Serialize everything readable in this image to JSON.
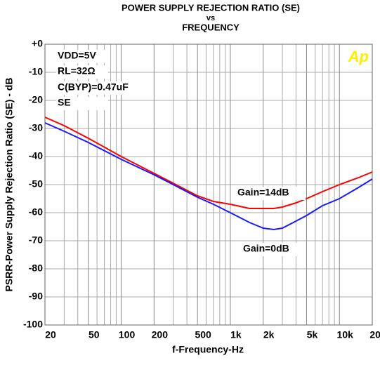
{
  "chart_data": {
    "type": "line",
    "title_lines": [
      "POWER SUPPLY REJECTION RATIO (SE)",
      "vs",
      "FREQUENCY"
    ],
    "xlabel": "f-Frequency-Hz",
    "ylabel": "PSRR-Power Supply Rejection Ratio (SE) - dB",
    "logo": "Ap",
    "conditions": [
      "VDD=5V",
      "RL=32Ω",
      "C(BYP)=0.47uF",
      "SE"
    ],
    "annotations": [
      "Gain=14dB",
      "Gain=0dB"
    ],
    "x": [
      20,
      30,
      50,
      100,
      200,
      300,
      500,
      700,
      1000,
      1500,
      2000,
      2500,
      3000,
      4000,
      5000,
      7000,
      10000,
      15000,
      20000
    ],
    "series": [
      {
        "name": "Gain=14dB",
        "color": "#ff0000",
        "values": [
          -26,
          -29,
          -33.5,
          -40,
          -46,
          -49.5,
          -54,
          -56,
          -57,
          -58.5,
          -58.5,
          -58.5,
          -58,
          -56.5,
          -55,
          -52.5,
          -50,
          -47.5,
          -45.5
        ]
      },
      {
        "name": "Gain=0dB",
        "color": "#1a1aff",
        "values": [
          -28,
          -31,
          -35,
          -41,
          -46.5,
          -50,
          -54.5,
          -57,
          -60,
          -63.5,
          -65.5,
          -66,
          -65.5,
          -63,
          -61,
          -57.5,
          -55,
          -51,
          -48
        ]
      }
    ],
    "xscale": "log",
    "xlim": [
      20,
      20000
    ],
    "xticks": [
      20,
      50,
      100,
      200,
      500,
      {
        "value": 1000,
        "label": "1k"
      },
      {
        "value": 2000,
        "label": "2k"
      },
      {
        "value": 5000,
        "label": "5k"
      },
      {
        "value": 10000,
        "label": "10k"
      },
      {
        "value": 20000,
        "label": "20k"
      }
    ],
    "xminorticks": [
      30,
      40,
      60,
      70,
      80,
      90,
      300,
      400,
      600,
      700,
      800,
      900,
      3000,
      4000,
      6000,
      7000,
      8000,
      9000
    ],
    "ylim": [
      -100,
      0
    ],
    "yticks": [
      {
        "value": 0,
        "label": "+0"
      },
      -10,
      -20,
      -30,
      -40,
      -50,
      -60,
      -70,
      -80,
      -90,
      -100
    ],
    "grid": true
  }
}
